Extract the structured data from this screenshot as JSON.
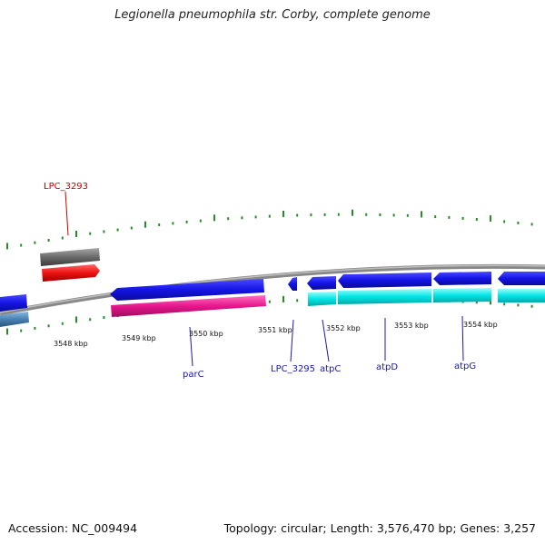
{
  "header": {
    "title": "Legionella pneumophila str. Corby, complete genome"
  },
  "footer": {
    "accession": "Accession: NC_009494",
    "summary": "Topology: circular; Length: 3,576,470 bp; Genes: 3,257"
  },
  "colors": {
    "backbone": "#888888",
    "tick": "#2a8a2a",
    "gene_forward": "#1414e6",
    "gene_cds": "#00e6e6",
    "gene_parC_cds": "#e6168c",
    "gene_red": "#ee1111",
    "gene_grey": "#6a6a6a",
    "gene_steel": "#4682b4",
    "label_blue": "#1a1aa8",
    "label_red": "#cc0000"
  },
  "kbp_ticks": [
    "3548 kbp",
    "3549 kbp",
    "3550 kbp",
    "3551 kbp",
    "3552 kbp",
    "3553 kbp",
    "3554 kbp"
  ],
  "gene_labels": [
    "LPC_3293",
    "parC",
    "LPC_3295",
    "atpC",
    "atpD",
    "atpG"
  ]
}
